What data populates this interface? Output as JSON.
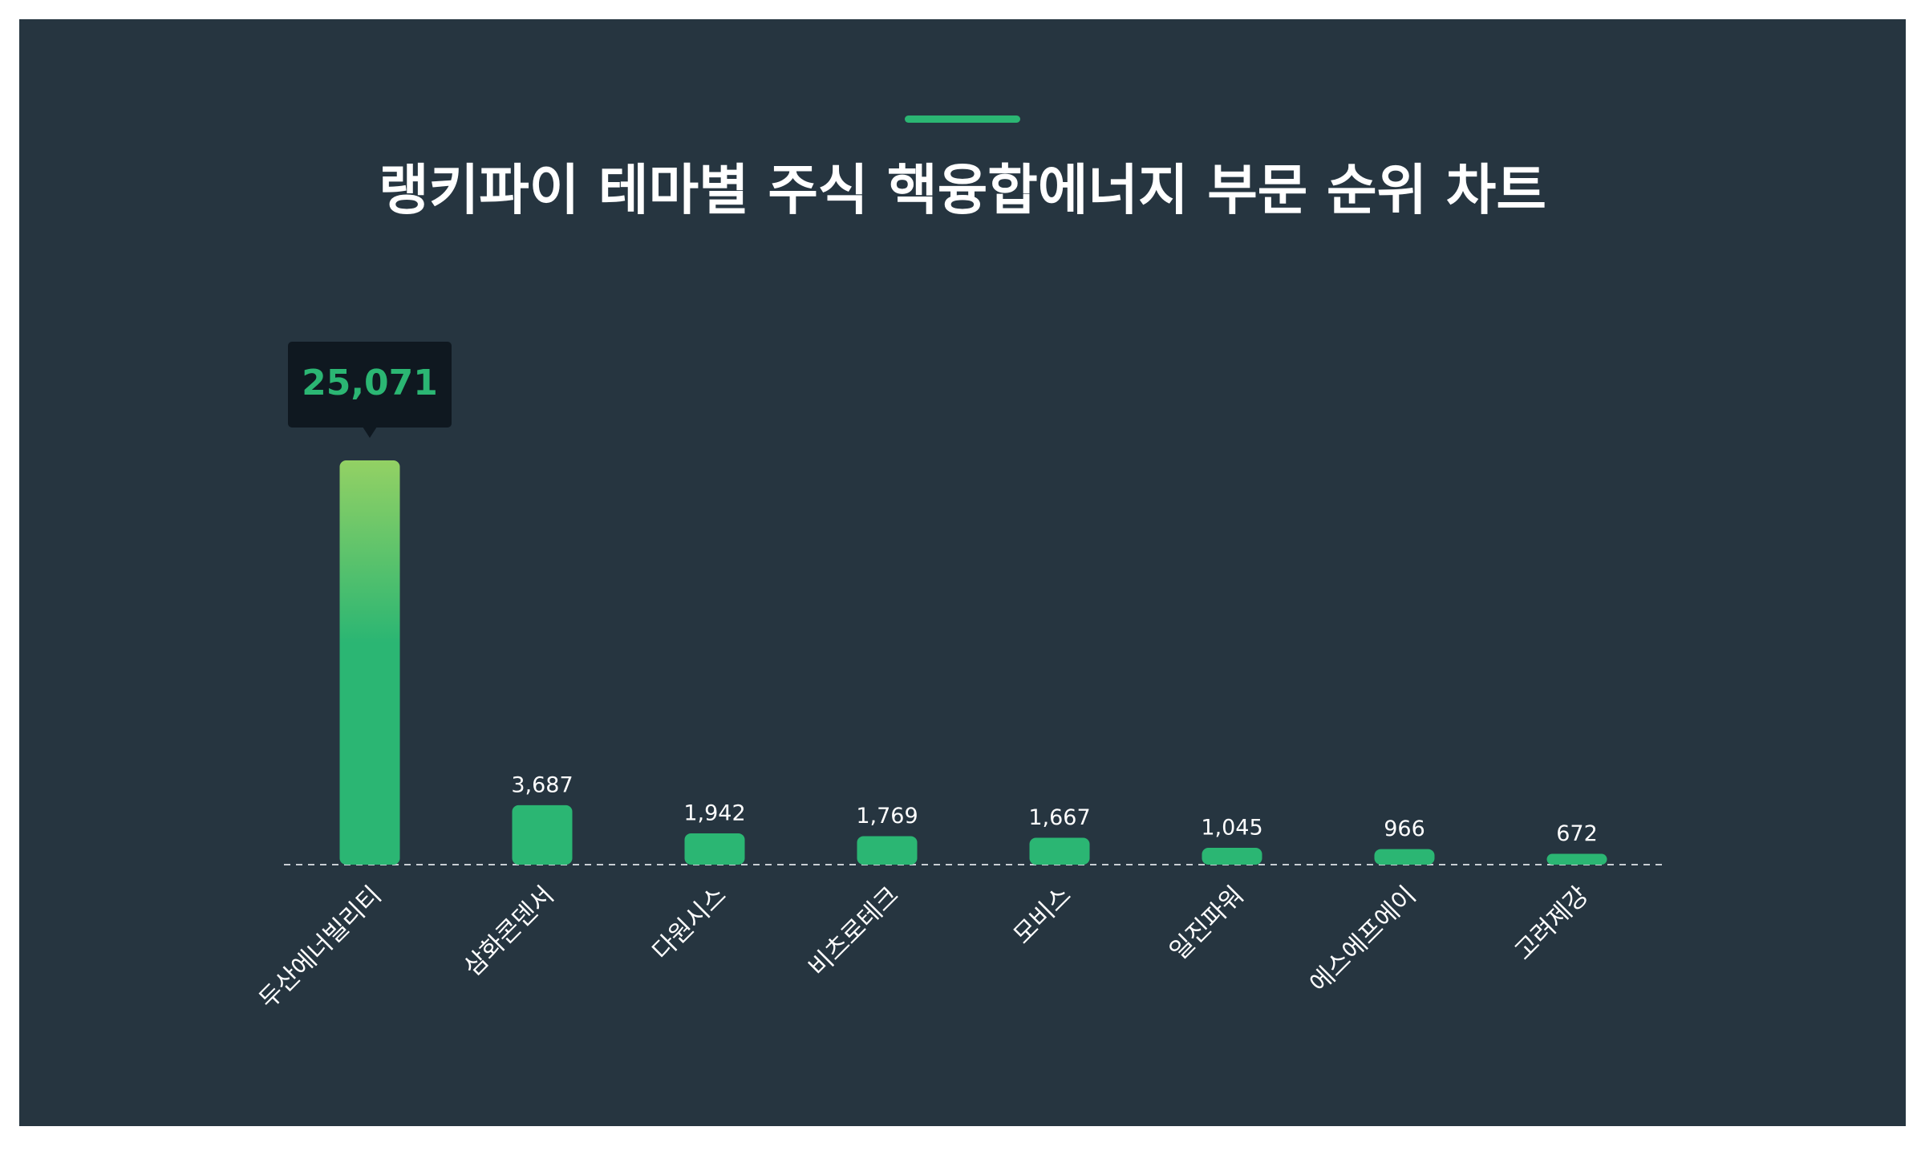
{
  "chart_data": {
    "type": "bar",
    "title": "랭키파이 테마별 주식 핵융합에너지 부문 순위 차트",
    "categories": [
      "두산에너빌리티",
      "삼화콘덴서",
      "다원시스",
      "비츠로테크",
      "모비스",
      "일진파워",
      "에스에프에이",
      "고려제강"
    ],
    "values": [
      25071,
      3687,
      1942,
      1769,
      1667,
      1045,
      966,
      672
    ],
    "value_labels": [
      "25,071",
      "3,687",
      "1,942",
      "1,769",
      "1,667",
      "1,045",
      "966",
      "672"
    ],
    "color": "#2bb673"
  }
}
